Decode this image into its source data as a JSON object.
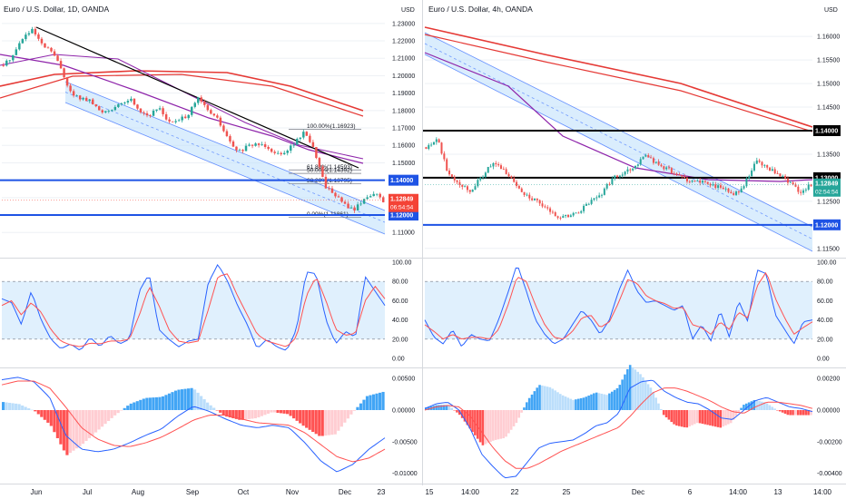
{
  "colors": {
    "up": "#26a69a",
    "down": "#ef5350",
    "channel": "#bbdefb",
    "channel_line": "#2962ff",
    "ma_red": "#e53935",
    "ma_purple": "#8e24aa",
    "blue_level": "#1e53e5",
    "price_red": "#f44336",
    "price_teal": "#26a69a",
    "stoch_k": "#2962ff",
    "stoch_d": "#ff5252",
    "hist_pos": "#42a5f5",
    "hist_pos_light": "#bbdefb",
    "hist_neg": "#ff5252",
    "hist_neg_light": "#ffcdd2",
    "grid": "#eef1f5",
    "text": "#131722",
    "divider": "#d6d9de"
  },
  "chart_data": [
    {
      "type": "candlestick",
      "title": "Euro / U.S. Dollar, 1D, OANDA",
      "currency": "USD",
      "price_axis": [
        "1.23000",
        "1.22000",
        "1.21000",
        "1.20000",
        "1.19000",
        "1.18000",
        "1.17000",
        "1.16000",
        "1.15000",
        "1.14000",
        "1.13000",
        "1.12000",
        "1.11000"
      ],
      "ylim": [
        1.107,
        1.232
      ],
      "x_labels": [
        "Jun",
        "Jul",
        "Aug",
        "Sep",
        "Oct",
        "Nov",
        "Dec",
        "23"
      ],
      "close_path": [
        1.206,
        1.212,
        1.222,
        1.226,
        1.217,
        1.214,
        1.203,
        1.189,
        1.187,
        1.185,
        1.179,
        1.181,
        1.183,
        1.187,
        1.18,
        1.177,
        1.182,
        1.173,
        1.174,
        1.178,
        1.187,
        1.18,
        1.175,
        1.164,
        1.156,
        1.159,
        1.161,
        1.16,
        1.155,
        1.157,
        1.162,
        1.168,
        1.156,
        1.137,
        1.132,
        1.126,
        1.123,
        1.129,
        1.133,
        1.128
      ],
      "fib_levels": [
        {
          "label": "100.00%(1.16923)",
          "value": 1.16923
        },
        {
          "label": "61.80%(1.14593)",
          "value": 1.14593
        },
        {
          "label": "50.00%(1.14392)",
          "value": 1.14392
        },
        {
          "label": "38.20%(1.13795)",
          "value": 1.13795
        },
        {
          "label": "0.00%(1.11861)",
          "value": 1.11861
        }
      ],
      "horizontal_levels": [
        {
          "label": "1.14000",
          "value": 1.14
        },
        {
          "label": "1.12000",
          "value": 1.12
        }
      ],
      "last_price": {
        "value": "1.12849",
        "timer": "06:54:54"
      },
      "stochastic": {
        "axis": [
          "100.00",
          "80.00",
          "60.00",
          "40.00",
          "20.00",
          "0.00"
        ],
        "band": [
          20,
          80
        ],
        "k": [
          62,
          58,
          35,
          70,
          40,
          20,
          10,
          15,
          8,
          22,
          12,
          24,
          15,
          20,
          70,
          88,
          30,
          20,
          12,
          18,
          20,
          78,
          98,
          80,
          55,
          35,
          10,
          20,
          12,
          8,
          30,
          90,
          88,
          40,
          15,
          28,
          22,
          85,
          70,
          55
        ],
        "d": [
          55,
          60,
          45,
          58,
          48,
          30,
          18,
          14,
          12,
          16,
          15,
          18,
          18,
          20,
          45,
          75,
          55,
          30,
          18,
          16,
          18,
          50,
          85,
          88,
          65,
          45,
          25,
          18,
          15,
          12,
          22,
          65,
          85,
          60,
          30,
          24,
          26,
          60,
          75,
          62
        ]
      },
      "macd": {
        "axis": [
          "0.00500",
          "0.00000",
          "-0.00500",
          "-0.01000"
        ],
        "macd": [
          0.0048,
          0.0052,
          0.0045,
          0.002,
          -0.004,
          -0.0062,
          -0.0066,
          -0.0062,
          -0.0052,
          -0.004,
          -0.003,
          -0.001,
          0.0006,
          -0.0002,
          -0.0014,
          -0.0024,
          -0.0028,
          -0.0024,
          -0.0028,
          -0.0052,
          -0.0081,
          -0.0098,
          -0.0086,
          -0.0062,
          -0.0044
        ],
        "signal": [
          0.004,
          0.0046,
          0.0046,
          0.0035,
          0.0005,
          -0.0028,
          -0.0046,
          -0.0056,
          -0.0058,
          -0.0052,
          -0.0043,
          -0.003,
          -0.0016,
          -0.0008,
          -0.0008,
          -0.0014,
          -0.002,
          -0.0022,
          -0.0024,
          -0.0036,
          -0.0055,
          -0.0074,
          -0.0082,
          -0.0076,
          -0.0062
        ]
      }
    },
    {
      "type": "candlestick",
      "title": "Euro / U.S. Dollar, 4h, OANDA",
      "currency": "USD",
      "price_axis": [
        "1.16000",
        "1.15500",
        "1.15000",
        "1.14500",
        "1.14000",
        "1.13500",
        "1.13000",
        "1.12500",
        "1.12000",
        "1.11500"
      ],
      "ylim": [
        1.1138,
        1.1635
      ],
      "x_labels": [
        "15",
        "14:00",
        "22",
        "25",
        "Dec",
        "6",
        "14:00",
        "13",
        "14:00"
      ],
      "close_path": [
        1.1365,
        1.1385,
        1.131,
        1.129,
        1.1272,
        1.13,
        1.133,
        1.1318,
        1.129,
        1.1265,
        1.125,
        1.1232,
        1.1218,
        1.1218,
        1.123,
        1.125,
        1.1268,
        1.13,
        1.1312,
        1.1325,
        1.135,
        1.1328,
        1.1318,
        1.1302,
        1.1294,
        1.129,
        1.1285,
        1.1278,
        1.1262,
        1.1288,
        1.1336,
        1.132,
        1.1307,
        1.129,
        1.127,
        1.1285
      ],
      "horizontal_levels": [
        {
          "label": "1.14000",
          "value": 1.14
        },
        {
          "label": "1.13000",
          "value": 1.13
        },
        {
          "label": "1.12000",
          "value": 1.12
        }
      ],
      "last_price": {
        "value": "1.12849",
        "timer": "02:54:54"
      },
      "stochastic": {
        "axis": [
          "100.00",
          "80.00",
          "60.00",
          "40.00",
          "20.00",
          "0.00"
        ],
        "band": [
          20,
          80
        ],
        "k": [
          40,
          22,
          15,
          30,
          12,
          25,
          20,
          18,
          40,
          68,
          98,
          70,
          40,
          25,
          15,
          20,
          35,
          50,
          40,
          25,
          40,
          70,
          92,
          70,
          58,
          60,
          55,
          50,
          55,
          20,
          35,
          18,
          50,
          22,
          60,
          38,
          92,
          88,
          45,
          30,
          15,
          38,
          40
        ],
        "d": [
          35,
          28,
          20,
          25,
          20,
          22,
          22,
          20,
          30,
          55,
          85,
          80,
          55,
          35,
          22,
          20,
          28,
          42,
          45,
          32,
          38,
          58,
          82,
          78,
          65,
          60,
          57,
          52,
          53,
          35,
          32,
          25,
          38,
          30,
          48,
          42,
          75,
          90,
          62,
          42,
          25,
          32,
          38
        ]
      },
      "macd": {
        "axis": [
          "0.00200",
          "0.00000",
          "-0.00200",
          "-0.00400"
        ],
        "macd": [
          0.0001,
          0.0004,
          0.0005,
          0.0,
          -0.0012,
          -0.0028,
          -0.0036,
          -0.0043,
          -0.0042,
          -0.0033,
          -0.0024,
          -0.0021,
          -0.002,
          -0.0019,
          -0.0015,
          -0.001,
          -0.0008,
          -0.0002,
          0.0014,
          0.0018,
          0.0019,
          0.0012,
          0.0008,
          0.0005,
          0.0004,
          0.0,
          -0.0005,
          -0.0006,
          0.0,
          0.0006,
          0.0008,
          0.0005,
          0.0002,
          0.0001,
          -0.0001
        ],
        "signal": [
          0.0,
          0.0002,
          0.0003,
          0.0002,
          -0.0004,
          -0.0014,
          -0.0024,
          -0.0032,
          -0.0037,
          -0.0037,
          -0.0034,
          -0.003,
          -0.0026,
          -0.0023,
          -0.002,
          -0.0017,
          -0.0014,
          -0.0011,
          -0.0004,
          0.0004,
          0.0011,
          0.0014,
          0.0014,
          0.0012,
          0.0009,
          0.0006,
          0.0002,
          -0.0001,
          -0.0002,
          0.0002,
          0.0005,
          0.0005,
          0.0004,
          0.0003,
          0.0001
        ]
      }
    }
  ]
}
